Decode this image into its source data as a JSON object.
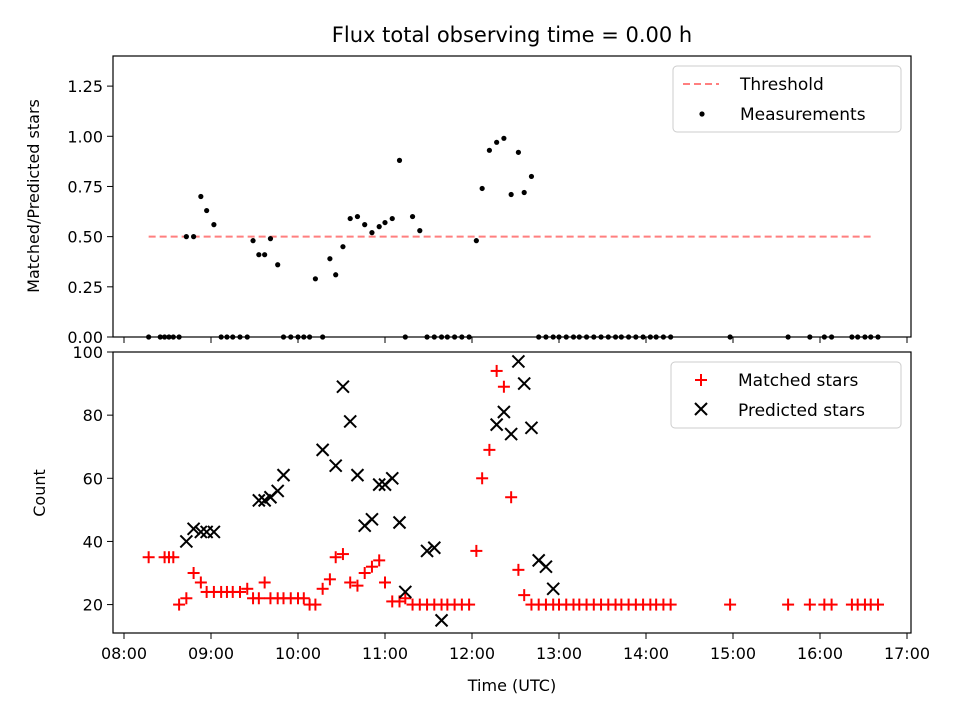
{
  "chart_data": [
    {
      "type": "scatter",
      "title": "Flux total observing time = 0.00 h",
      "xlabel": "",
      "ylabel": "Matched/Predicted stars",
      "xlim": [
        "08:00",
        "17:00"
      ],
      "ylim": [
        0,
        1.4
      ],
      "yticks": [
        "0.00",
        "0.25",
        "0.50",
        "0.75",
        "1.00",
        "1.25"
      ],
      "legend_position": "top-right",
      "threshold": {
        "name": "Threshold",
        "value": 0.5,
        "x_range": [
          "08:17",
          "16:35"
        ],
        "color": "#ff7f7f",
        "style": "dashed"
      },
      "series": [
        {
          "name": "Measurements",
          "color": "#000000",
          "marker": "dot",
          "x": [
            "08:17",
            "08:25",
            "08:28",
            "08:31",
            "08:34",
            "08:38",
            "08:43",
            "08:48",
            "08:53",
            "08:57",
            "09:02",
            "09:07",
            "09:11",
            "09:15",
            "09:20",
            "09:25",
            "09:29",
            "09:33",
            "09:37",
            "09:41",
            "09:46",
            "09:50",
            "09:55",
            "10:00",
            "10:04",
            "10:08",
            "10:12",
            "10:17",
            "10:22",
            "10:26",
            "10:31",
            "10:36",
            "10:41",
            "10:46",
            "10:51",
            "10:56",
            "11:00",
            "11:05",
            "11:10",
            "11:14",
            "11:19",
            "11:24",
            "11:29",
            "11:34",
            "11:39",
            "11:43",
            "11:48",
            "11:53",
            "11:58",
            "12:03",
            "12:07",
            "12:12",
            "12:17",
            "12:22",
            "12:27",
            "12:32",
            "12:36",
            "12:41",
            "12:46",
            "12:51",
            "12:56",
            "13:00",
            "13:05",
            "13:10",
            "13:14",
            "13:19",
            "13:24",
            "13:29",
            "13:34",
            "13:39",
            "13:43",
            "13:48",
            "13:53",
            "13:58",
            "14:03",
            "14:07",
            "14:12",
            "14:17",
            "14:58",
            "15:38",
            "15:53",
            "16:03",
            "16:08",
            "16:22",
            "16:26",
            "16:31",
            "16:35",
            "16:40"
          ],
          "y": [
            0,
            0,
            0,
            0,
            0,
            0,
            0.5,
            0.5,
            0.7,
            0.63,
            0.56,
            0,
            0,
            0,
            0,
            0,
            0.48,
            0.41,
            0.41,
            0.49,
            0.36,
            0,
            0,
            0,
            0,
            0,
            0.29,
            0,
            0.39,
            0.31,
            0.45,
            0.59,
            0.6,
            0.56,
            0.52,
            0.55,
            0.57,
            0.59,
            0.88,
            0,
            0.6,
            0.53,
            0,
            0,
            0,
            0,
            0,
            0,
            0,
            0.48,
            0.74,
            0.93,
            0.97,
            0.99,
            0.71,
            0.92,
            0.72,
            0.8,
            0,
            0,
            0,
            0,
            0,
            0,
            0,
            0,
            0,
            0,
            0,
            0,
            0,
            0,
            0,
            0,
            0,
            0,
            0,
            0,
            0,
            0,
            0,
            0,
            0,
            0,
            0,
            0,
            0,
            0
          ]
        }
      ]
    },
    {
      "type": "scatter",
      "title": "",
      "xlabel": "Time (UTC)",
      "ylabel": "Count",
      "xlim": [
        "08:00",
        "17:00"
      ],
      "ylim": [
        11,
        100
      ],
      "xticks": [
        "08:00",
        "09:00",
        "10:00",
        "11:00",
        "12:00",
        "13:00",
        "14:00",
        "15:00",
        "16:00",
        "17:00"
      ],
      "yticks": [
        "20",
        "40",
        "60",
        "80",
        "100"
      ],
      "legend_position": "top-right",
      "series": [
        {
          "name": "Matched stars",
          "color": "#ff0000",
          "marker": "plus",
          "x": [
            "08:17",
            "08:28",
            "08:31",
            "08:34",
            "08:38",
            "08:43",
            "08:48",
            "08:53",
            "08:57",
            "09:02",
            "09:07",
            "09:11",
            "09:15",
            "09:20",
            "09:25",
            "09:29",
            "09:33",
            "09:37",
            "09:41",
            "09:46",
            "09:50",
            "09:55",
            "10:00",
            "10:04",
            "10:08",
            "10:12",
            "10:17",
            "10:22",
            "10:26",
            "10:31",
            "10:36",
            "10:41",
            "10:46",
            "10:51",
            "10:56",
            "11:00",
            "11:05",
            "11:10",
            "11:14",
            "11:19",
            "11:24",
            "11:29",
            "11:34",
            "11:39",
            "11:43",
            "11:48",
            "11:53",
            "11:58",
            "12:03",
            "12:07",
            "12:12",
            "12:17",
            "12:22",
            "12:27",
            "12:32",
            "12:36",
            "12:41",
            "12:46",
            "12:51",
            "12:56",
            "13:00",
            "13:05",
            "13:10",
            "13:14",
            "13:19",
            "13:24",
            "13:29",
            "13:34",
            "13:39",
            "13:43",
            "13:48",
            "13:53",
            "13:58",
            "14:03",
            "14:07",
            "14:12",
            "14:17",
            "14:58",
            "15:38",
            "15:53",
            "16:03",
            "16:08",
            "16:22",
            "16:26",
            "16:31",
            "16:35",
            "16:40"
          ],
          "y": [
            35,
            35,
            35,
            35,
            20,
            22,
            30,
            27,
            24,
            24,
            24,
            24,
            24,
            24,
            25,
            22,
            22,
            27,
            22,
            22,
            22,
            22,
            22,
            22,
            20,
            20,
            25,
            28,
            35,
            36,
            27,
            26,
            30,
            32,
            34,
            27,
            21,
            21,
            22,
            20,
            20,
            20,
            20,
            20,
            20,
            20,
            20,
            20,
            37,
            60,
            69,
            94,
            89,
            54,
            31,
            23,
            20,
            20,
            20,
            20,
            20,
            20,
            20,
            20,
            20,
            20,
            20,
            20,
            20,
            20,
            20,
            20,
            20,
            20,
            20,
            20,
            20,
            20,
            20,
            20,
            20,
            20,
            20,
            20,
            20,
            20,
            20
          ]
        },
        {
          "name": "Predicted stars",
          "color": "#000000",
          "marker": "x",
          "x": [
            "08:43",
            "08:48",
            "08:53",
            "08:57",
            "09:02",
            "09:33",
            "09:37",
            "09:41",
            "09:46",
            "09:50",
            "10:17",
            "10:26",
            "10:31",
            "10:36",
            "10:41",
            "10:46",
            "10:51",
            "10:56",
            "11:00",
            "11:05",
            "11:10",
            "11:14",
            "11:29",
            "11:34",
            "11:39",
            "12:17",
            "12:22",
            "12:27",
            "12:32",
            "12:36",
            "12:41",
            "12:46",
            "12:51",
            "12:56"
          ],
          "y": [
            40,
            44,
            43,
            43,
            43,
            53,
            53,
            54,
            56,
            61,
            69,
            64,
            89,
            78,
            61,
            45,
            47,
            58,
            58,
            60,
            46,
            24,
            37,
            38,
            15,
            77,
            81,
            74,
            97,
            90,
            76,
            34,
            32,
            25
          ]
        }
      ]
    }
  ]
}
